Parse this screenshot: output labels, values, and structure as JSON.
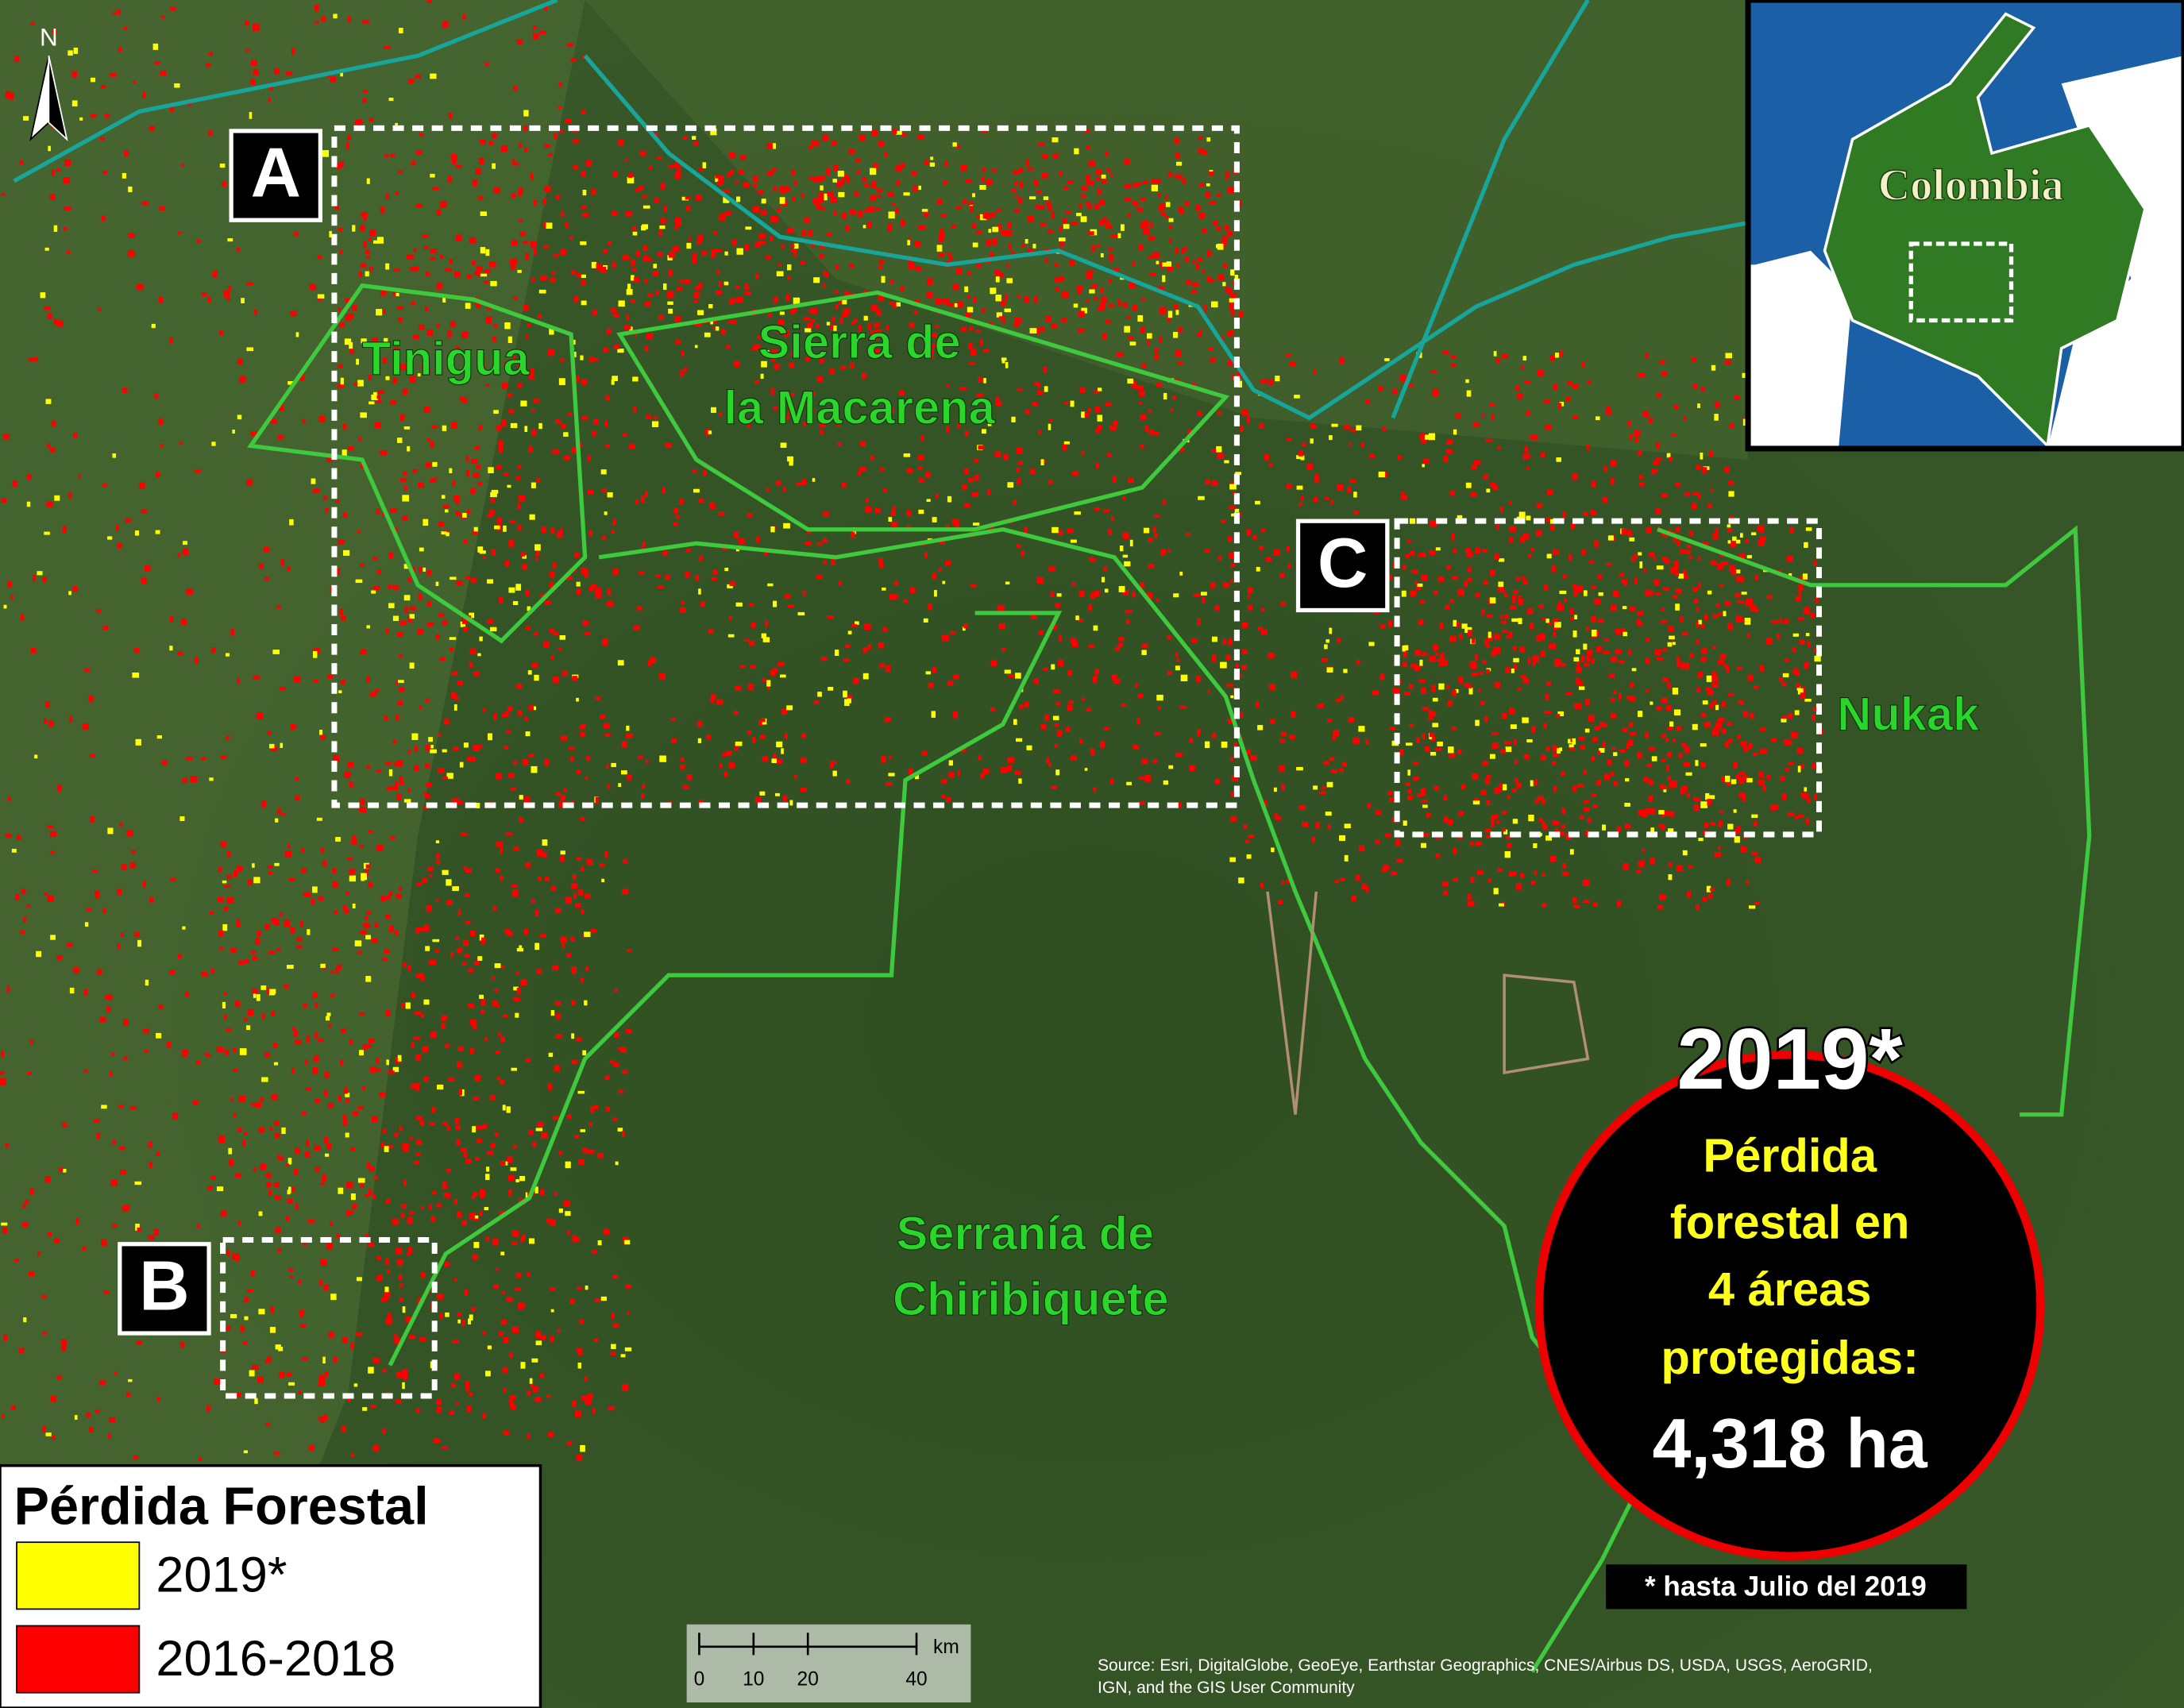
{
  "map": {
    "north": "N",
    "boxes": {
      "a": "A",
      "b": "B",
      "c": "C"
    },
    "areas": {
      "tinigua": "Tinigua",
      "macarena": [
        "Sierra de",
        "la Macarena"
      ],
      "nukak": "Nukak",
      "chiribiquete": [
        "Serranía de",
        "Chiribiquete"
      ]
    },
    "inset": {
      "country": "Colombia"
    },
    "callout": {
      "year": "2019*",
      "lines": [
        "Pérdida",
        "forestal en",
        "4 áreas",
        "protegidas:"
      ],
      "total": "4,318 ha",
      "note": "* hasta Julio del 2019"
    },
    "legend": {
      "title": "Pérdida Forestal",
      "items": [
        {
          "label": "2019*",
          "color": "#ffff00"
        },
        {
          "label": "2016-2018",
          "color": "#ff0000"
        }
      ]
    },
    "scale_bar": {
      "unit": "km",
      "ticks": [
        0,
        10,
        20,
        40
      ]
    },
    "source": [
      "Source: Esri, DigitalGlobe, GeoEye, Earthstar Geographics, CNES/Airbus DS, USDA, USGS, AeroGRID,",
      "IGN, and the GIS User Community"
    ]
  }
}
